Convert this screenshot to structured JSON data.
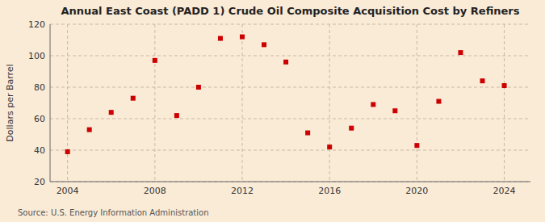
{
  "chart_data": {
    "type": "scatter",
    "title": "Annual East Coast (PADD 1) Crude Oil Composite Acquisition Cost by Refiners",
    "ylabel": "Dollars per Barrel",
    "annotations": [
      "Source: U.S. Energy Information Administration"
    ],
    "x": [
      2004,
      2005,
      2006,
      2007,
      2008,
      2009,
      2010,
      2011,
      2012,
      2013,
      2014,
      2015,
      2016,
      2017,
      2018,
      2019,
      2020,
      2021,
      2022,
      2023,
      2024
    ],
    "values": [
      39,
      53,
      64,
      73,
      97,
      62,
      80,
      111,
      112,
      107,
      96,
      51,
      42,
      54,
      69,
      65,
      43,
      71,
      102,
      84,
      81
    ],
    "color": "#cc0000",
    "marker": "square",
    "xlim": [
      2003.2,
      2025.2
    ],
    "xticks": [
      2004,
      2008,
      2012,
      2016,
      2020,
      2024
    ],
    "ylim": [
      20,
      120
    ],
    "yticks": [
      20,
      40,
      60,
      80,
      100,
      120
    ],
    "grid": true
  }
}
